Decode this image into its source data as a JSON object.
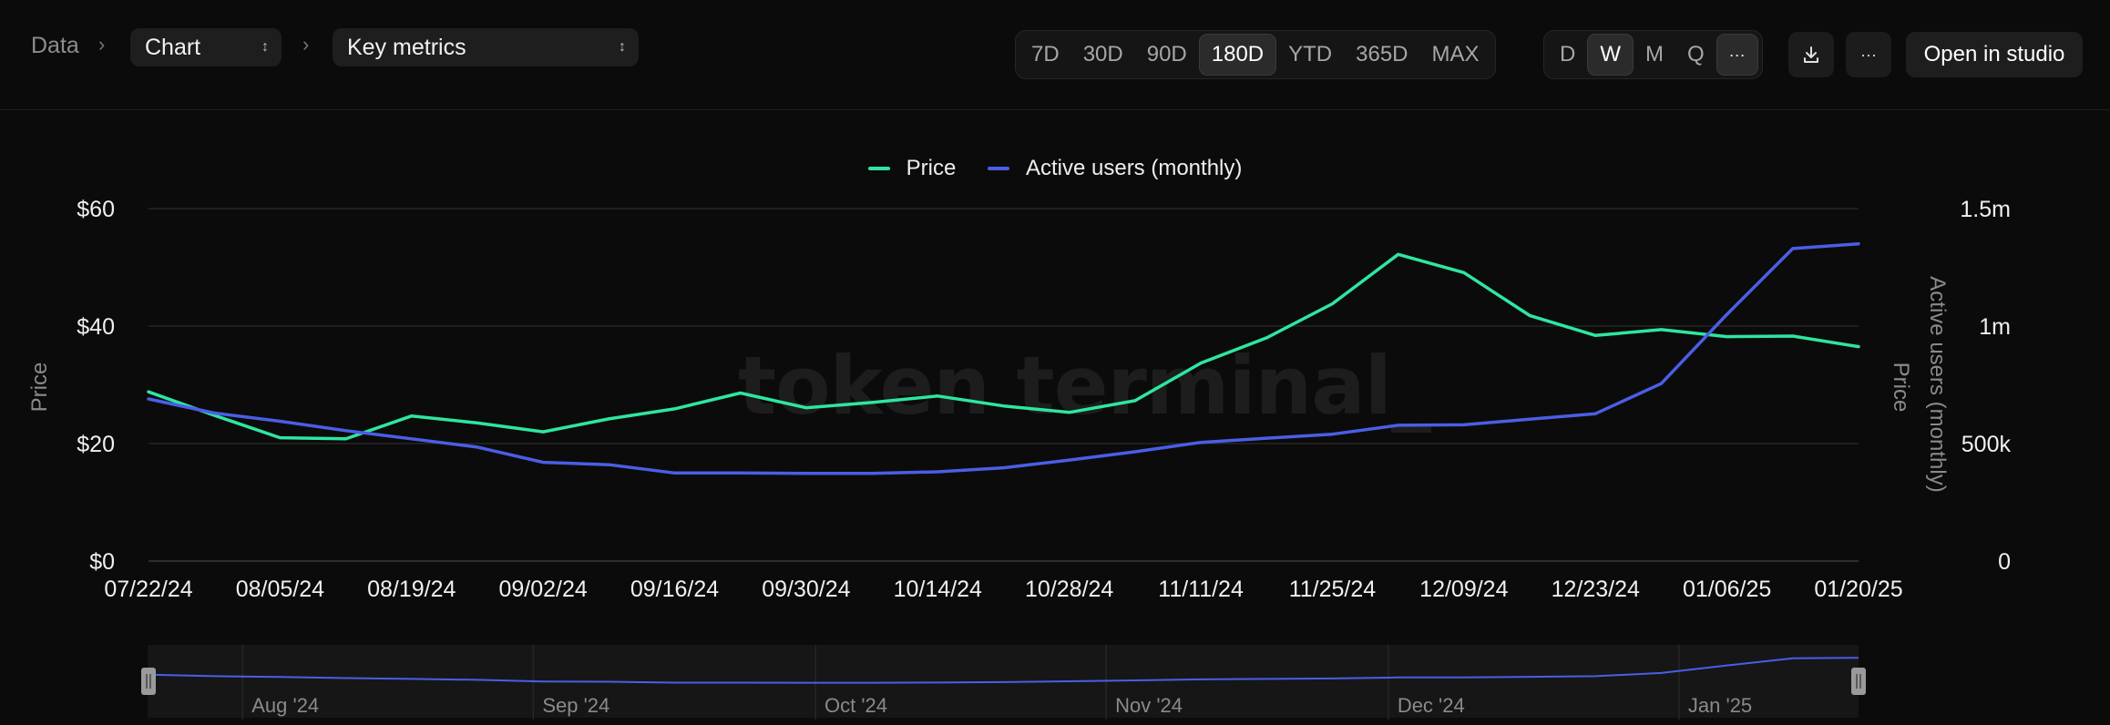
{
  "breadcrumb": {
    "root": "Data",
    "chart_select": "Chart",
    "metric_select": "Key metrics"
  },
  "toolbar": {
    "ranges": [
      "7D",
      "30D",
      "90D",
      "180D",
      "YTD",
      "365D",
      "MAX"
    ],
    "active_range": "180D",
    "granularity": [
      "D",
      "W",
      "M",
      "Q"
    ],
    "active_granularity": "W",
    "more_symbol": "···",
    "open_studio_label": "Open in studio",
    "download_icon": "download-icon",
    "more_icon": "more-icon"
  },
  "watermark": "token terminal_",
  "chart_data": {
    "type": "line",
    "x": [
      "07/22/24",
      "07/29/24",
      "08/05/24",
      "08/12/24",
      "08/19/24",
      "08/26/24",
      "09/02/24",
      "09/09/24",
      "09/16/24",
      "09/23/24",
      "09/30/24",
      "10/07/24",
      "10/14/24",
      "10/21/24",
      "10/28/24",
      "11/04/24",
      "11/11/24",
      "11/18/24",
      "11/25/24",
      "12/02/24",
      "12/09/24",
      "12/16/24",
      "12/23/24",
      "12/30/24",
      "01/06/25",
      "01/13/25",
      "01/20/25"
    ],
    "x_tick_labels": [
      "07/22/24",
      "08/05/24",
      "08/19/24",
      "09/02/24",
      "09/16/24",
      "09/30/24",
      "10/14/24",
      "10/28/24",
      "11/11/24",
      "11/25/24",
      "12/09/24",
      "12/23/24",
      "01/06/25",
      "01/20/25"
    ],
    "series": [
      {
        "name": "Price",
        "axis": "left",
        "color": "#2ee6a0",
        "values": [
          28.8,
          24.8,
          21.0,
          20.8,
          24.7,
          23.5,
          22.0,
          24.2,
          25.9,
          28.6,
          26.1,
          27.0,
          28.1,
          26.4,
          25.3,
          27.3,
          33.7,
          38.0,
          43.8,
          52.2,
          49.1,
          41.8,
          38.4,
          39.4,
          38.2,
          38.3,
          36.5
        ]
      },
      {
        "name": "Active users (monthly)",
        "axis": "right",
        "color": "#4a5ee6",
        "values": [
          690000,
          630000,
          595000,
          555000,
          520000,
          485000,
          420000,
          410000,
          375000,
          375000,
          373000,
          373000,
          380000,
          397000,
          430000,
          465000,
          505000,
          523000,
          540000,
          578000,
          580000,
          604000,
          627000,
          755000,
          1050000,
          1330000,
          1350000
        ]
      }
    ],
    "left_axis": {
      "title": "Price",
      "ylim": [
        0,
        60
      ],
      "ticks": [
        "$0",
        "$20",
        "$40",
        "$60"
      ]
    },
    "right_axis": {
      "title": "Price",
      "title_outer": "Active users (monthly)",
      "ylim": [
        0,
        1500000
      ],
      "ticks": [
        "0",
        "500k",
        "1m",
        "1.5m"
      ]
    },
    "grid": true,
    "legend": "top-center"
  },
  "navigator": {
    "month_labels": [
      "Aug '24",
      "Sep '24",
      "Oct '24",
      "Nov '24",
      "Dec '24",
      "Jan '25"
    ]
  }
}
